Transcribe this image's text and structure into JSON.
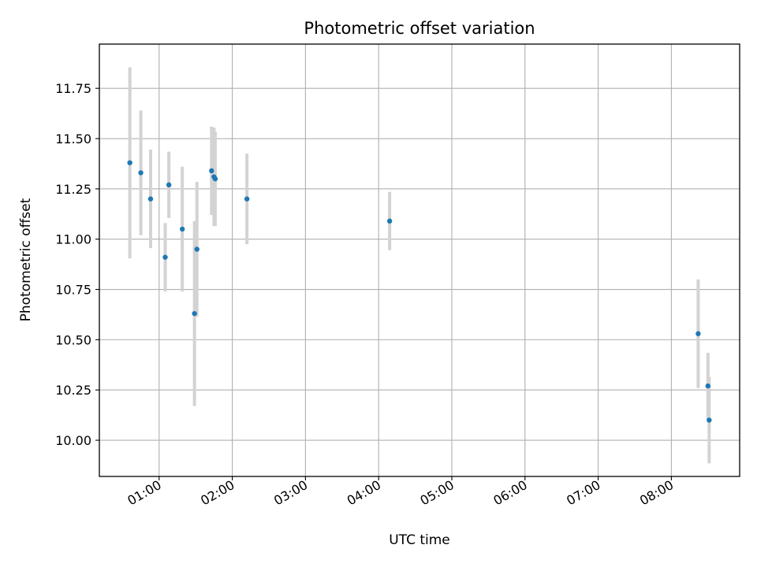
{
  "chart_data": {
    "type": "scatter",
    "title": "Photometric offset variation",
    "xlabel": "UTC time",
    "ylabel": "Photometric offset",
    "x_tick_labels": [
      "01:00",
      "02:00",
      "03:00",
      "04:00",
      "05:00",
      "06:00",
      "07:00",
      "08:00"
    ],
    "y_tick_labels": [
      "10.00",
      "10.25",
      "10.50",
      "10.75",
      "11.00",
      "11.25",
      "11.50",
      "11.75"
    ],
    "y_ticks": [
      10.0,
      10.25,
      10.5,
      10.75,
      11.0,
      11.25,
      11.5,
      11.75
    ],
    "xlim": [
      "00:11",
      "08:56"
    ],
    "ylim": [
      9.82,
      11.97
    ],
    "grid": true,
    "point_color": "#1f77b4",
    "errorbar_color": "#d3d3d3",
    "points": [
      {
        "x": "00:36",
        "y": 11.38,
        "err": 0.475
      },
      {
        "x": "00:45",
        "y": 11.33,
        "err": 0.31
      },
      {
        "x": "00:53",
        "y": 11.2,
        "err": 0.245
      },
      {
        "x": "01:05",
        "y": 10.91,
        "err": 0.17
      },
      {
        "x": "01:08",
        "y": 11.27,
        "err": 0.165
      },
      {
        "x": "01:19",
        "y": 11.05,
        "err": 0.31
      },
      {
        "x": "01:29",
        "y": 10.63,
        "err": 0.46
      },
      {
        "x": "01:31",
        "y": 10.95,
        "err": 0.335
      },
      {
        "x": "01:43",
        "y": 11.34,
        "err": 0.22
      },
      {
        "x": "01:45",
        "y": 11.31,
        "err": 0.245
      },
      {
        "x": "01:46",
        "y": 11.3,
        "err": 0.235
      },
      {
        "x": "02:12",
        "y": 11.2,
        "err": 0.225
      },
      {
        "x": "04:09",
        "y": 11.09,
        "err": 0.145
      },
      {
        "x": "08:22",
        "y": 10.53,
        "err": 0.27
      },
      {
        "x": "08:30",
        "y": 10.27,
        "err": 0.165
      },
      {
        "x": "08:31",
        "y": 10.1,
        "err": 0.215
      }
    ]
  }
}
